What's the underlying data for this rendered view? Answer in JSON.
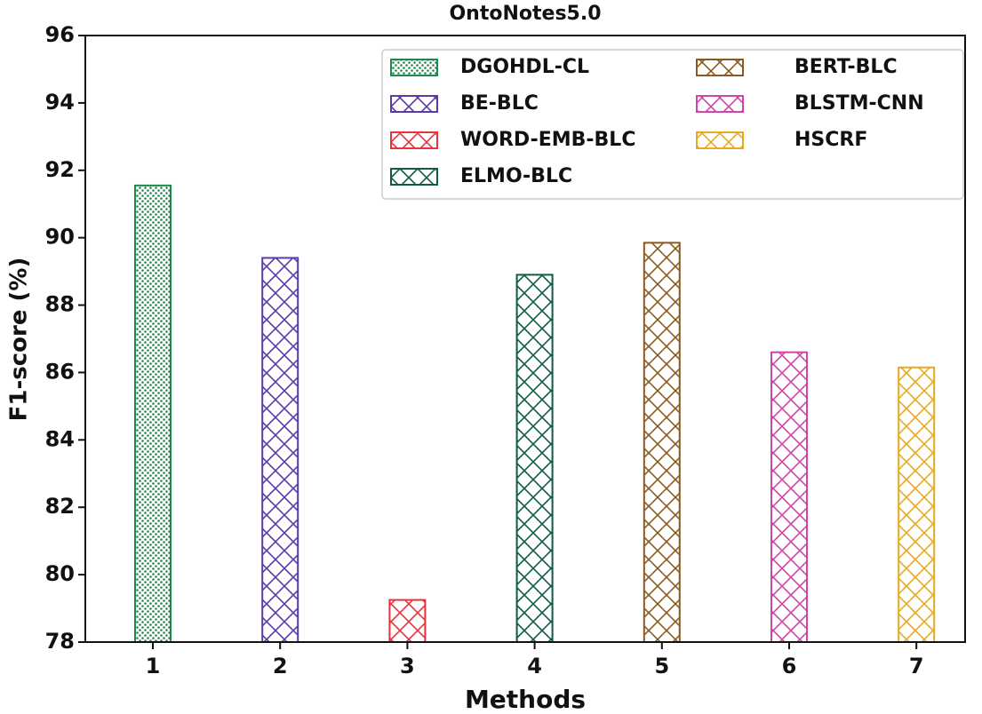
{
  "chart_data": {
    "type": "bar",
    "title": "OntoNotes5.0",
    "x_label": "Methods",
    "y_label": "F1-score (%)",
    "categories": [
      "1",
      "2",
      "3",
      "4",
      "5",
      "6",
      "7"
    ],
    "series": [
      {
        "name": "DGOHDL-CL",
        "color": "#1e8a4a",
        "hatch": "dots",
        "values": [
          91.55,
          null,
          null,
          null,
          null,
          null,
          null
        ]
      },
      {
        "name": "BE-BLC",
        "color": "#5b3aa8",
        "hatch": "x",
        "values": [
          null,
          89.4,
          null,
          null,
          null,
          null,
          null
        ]
      },
      {
        "name": "WORD-EMB-BLC",
        "color": "#e8323c",
        "hatch": "x",
        "values": [
          null,
          null,
          79.25,
          null,
          null,
          null,
          null
        ]
      },
      {
        "name": "ELMO-BLC",
        "color": "#0f5a48",
        "hatch": "x",
        "values": [
          null,
          null,
          null,
          88.9,
          null,
          null,
          null
        ]
      },
      {
        "name": "BERT-BLC",
        "color": "#8b5a20",
        "hatch": "x",
        "values": [
          null,
          null,
          null,
          null,
          89.85,
          null,
          null
        ]
      },
      {
        "name": "BLSTM-CNN",
        "color": "#d045a8",
        "hatch": "x",
        "values": [
          null,
          null,
          null,
          null,
          null,
          86.6,
          null
        ]
      },
      {
        "name": "HSCRF",
        "color": "#e8a820",
        "hatch": "x",
        "values": [
          null,
          null,
          null,
          null,
          null,
          null,
          86.15
        ]
      }
    ],
    "ylim": [
      78,
      96
    ],
    "yticks": [
      78,
      80,
      82,
      84,
      86,
      88,
      90,
      92,
      94,
      96
    ],
    "grid": false,
    "legend": "upper right"
  }
}
